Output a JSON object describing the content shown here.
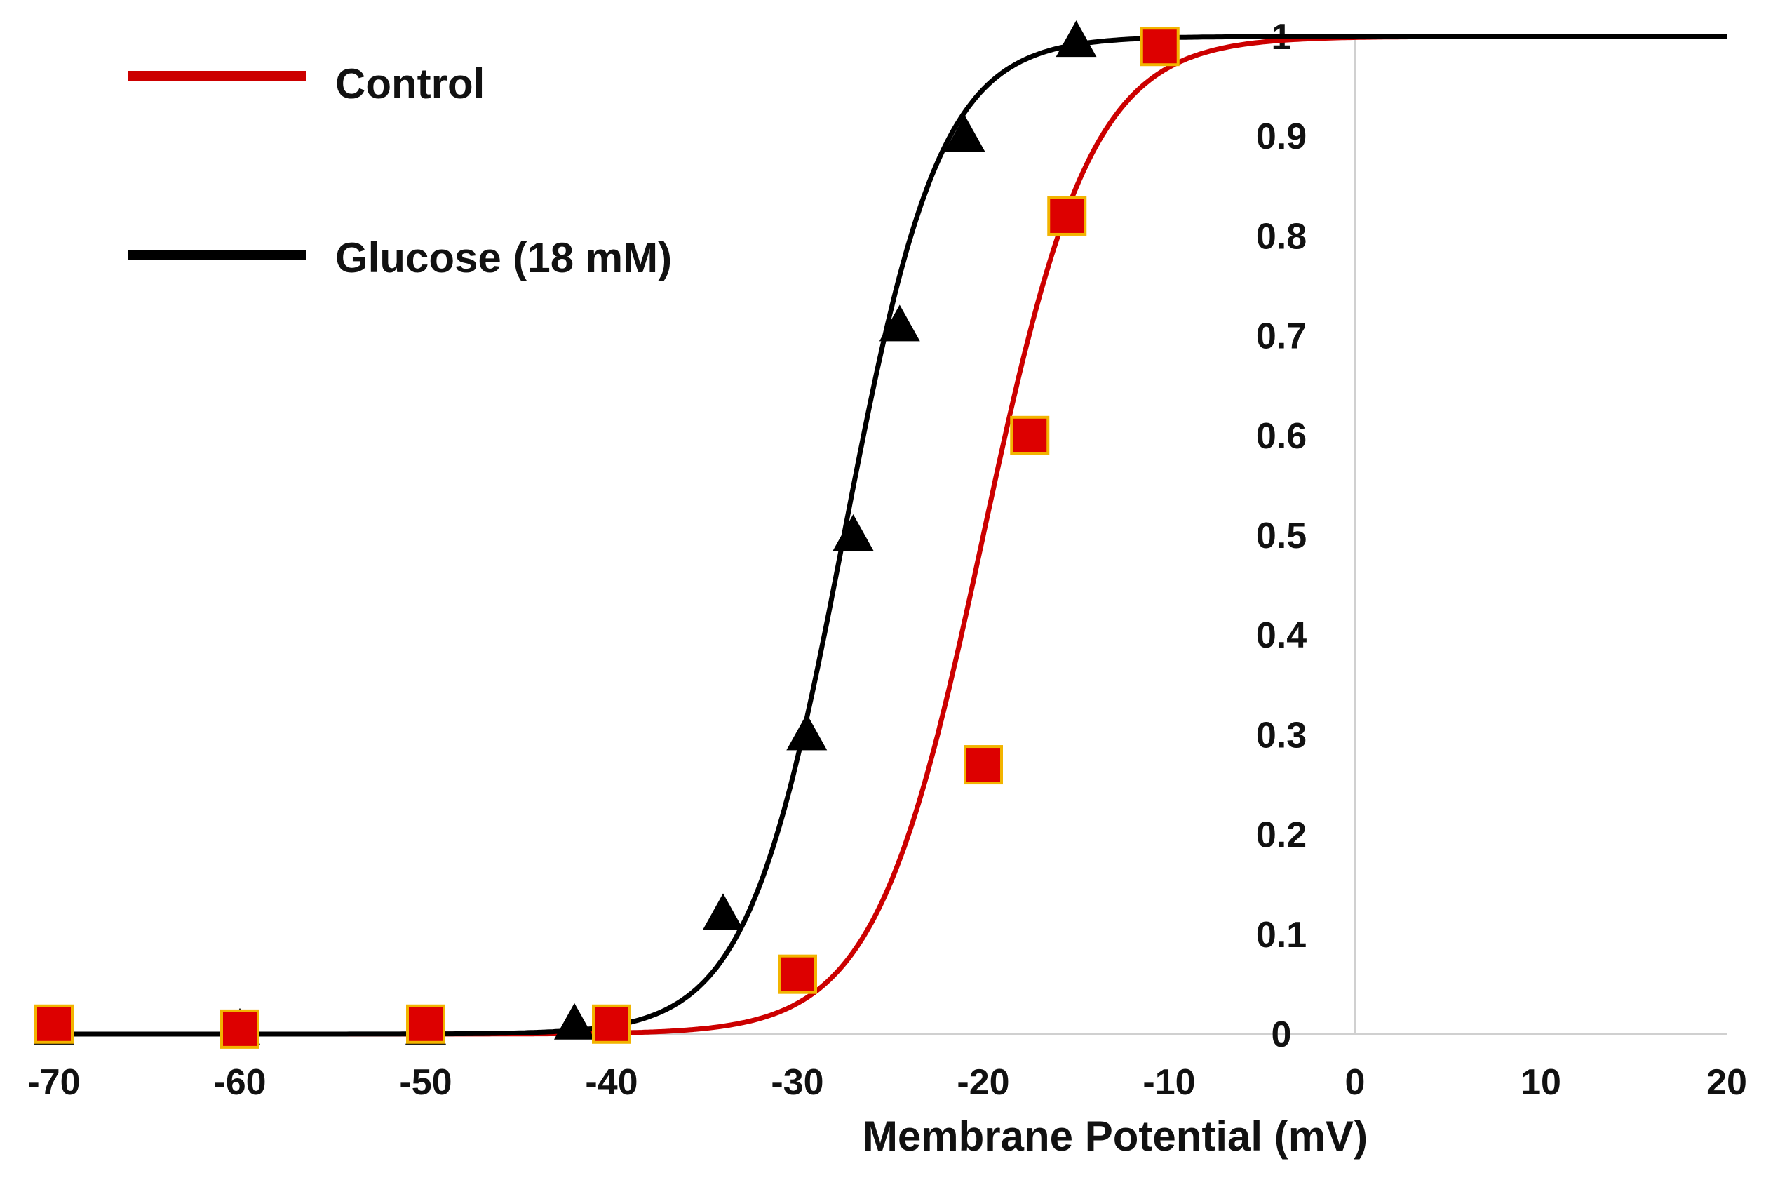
{
  "chart_data": {
    "type": "scatter",
    "title": "",
    "xlabel": "Membrane Potential (mV)",
    "ylabel": "",
    "xlim": [
      -70,
      20
    ],
    "ylim": [
      0,
      1
    ],
    "x_ticks": [
      "-70",
      "-60",
      "-50",
      "-40",
      "-30",
      "-20",
      "-10",
      "0",
      "10",
      "20"
    ],
    "y_ticks": [
      "0",
      "0.1",
      "0.2",
      "0.3",
      "0.4",
      "0.5",
      "0.6",
      "0.7",
      "0.8",
      "0.9",
      "1"
    ],
    "grid": false,
    "legend_position": "top-left",
    "series": [
      {
        "name": "Control",
        "color": "#cc0000",
        "marker": "square",
        "marker_fill": "#dd0000",
        "marker_edge": "#f2b400",
        "fit": {
          "v_half": -20,
          "slope": 2.9
        },
        "points": [
          {
            "x": -70,
            "y": 0.01
          },
          {
            "x": -60,
            "y": 0.005
          },
          {
            "x": -50,
            "y": 0.01
          },
          {
            "x": -40,
            "y": 0.01
          },
          {
            "x": -30,
            "y": 0.06
          },
          {
            "x": -20,
            "y": 0.27
          },
          {
            "x": -17.5,
            "y": 0.6
          },
          {
            "x": -15.5,
            "y": 0.82
          },
          {
            "x": -10.5,
            "y": 0.99
          }
        ]
      },
      {
        "name": "Glucose (18 mM)",
        "color": "#000000",
        "marker": "triangle",
        "marker_fill": "#000000",
        "fit": {
          "v_half": -27.5,
          "slope": 2.6
        },
        "points": [
          {
            "x": -70,
            "y": 0.005
          },
          {
            "x": -60,
            "y": 0.005
          },
          {
            "x": -50,
            "y": 0.005
          },
          {
            "x": -42,
            "y": 0.01
          },
          {
            "x": -34,
            "y": 0.12
          },
          {
            "x": -29.5,
            "y": 0.3
          },
          {
            "x": -27,
            "y": 0.5
          },
          {
            "x": -24.5,
            "y": 0.71
          },
          {
            "x": -21,
            "y": 0.9
          },
          {
            "x": -15,
            "y": 0.995
          }
        ]
      }
    ]
  }
}
